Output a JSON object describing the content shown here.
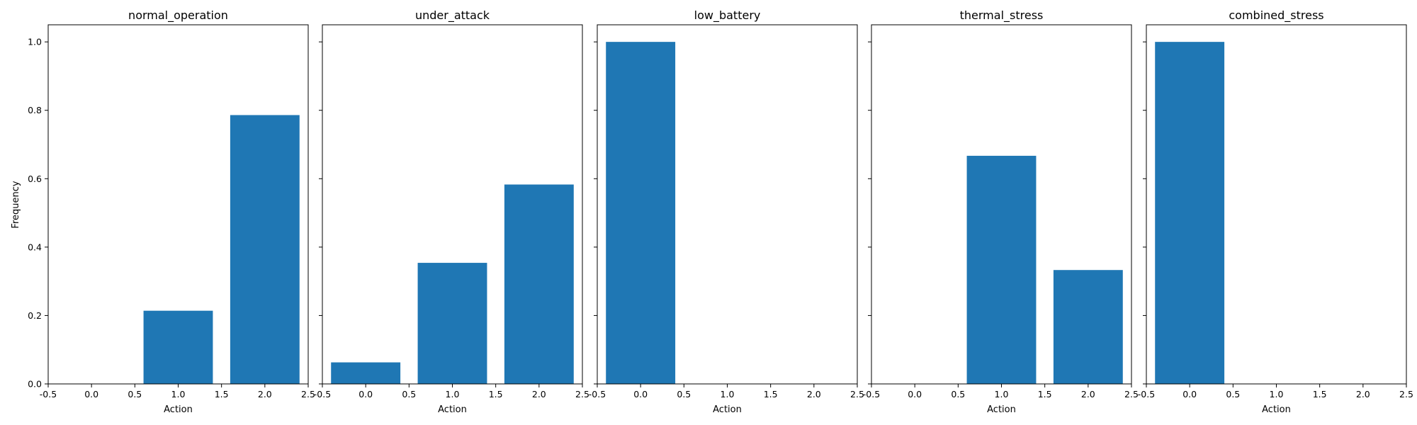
{
  "figure": {
    "ylabel": "Frequency",
    "bar_color": "#1f77b4"
  },
  "chart_data": [
    {
      "type": "bar",
      "title": "normal_operation",
      "xlabel": "Action",
      "ylabel": "Frequency",
      "x": [
        0,
        1,
        2
      ],
      "values": [
        0.0,
        0.214,
        0.786
      ],
      "bar_width": 0.8,
      "xlim": [
        -0.5,
        2.5
      ],
      "ylim": [
        0,
        1.05
      ],
      "xticks": [
        "-0.5",
        "0.0",
        "0.5",
        "1.0",
        "1.5",
        "2.0",
        "2.5"
      ],
      "yticks": [
        "0.0",
        "0.2",
        "0.4",
        "0.6",
        "0.8",
        "1.0"
      ],
      "grid": false
    },
    {
      "type": "bar",
      "title": "under_attack",
      "xlabel": "Action",
      "x": [
        0,
        1,
        2
      ],
      "values": [
        0.063,
        0.354,
        0.583
      ],
      "bar_width": 0.8,
      "xlim": [
        -0.5,
        2.5
      ],
      "ylim": [
        0,
        1.05
      ],
      "xticks": [
        "-0.5",
        "0.0",
        "0.5",
        "1.0",
        "1.5",
        "2.0",
        "2.5"
      ],
      "grid": false
    },
    {
      "type": "bar",
      "title": "low_battery",
      "xlabel": "Action",
      "x": [
        0,
        1,
        2
      ],
      "values": [
        1.0,
        0.0,
        0.0
      ],
      "bar_width": 0.8,
      "xlim": [
        -0.5,
        2.5
      ],
      "ylim": [
        0,
        1.05
      ],
      "xticks": [
        "-0.5",
        "0.0",
        "0.5",
        "1.0",
        "1.5",
        "2.0",
        "2.5"
      ],
      "grid": false
    },
    {
      "type": "bar",
      "title": "thermal_stress",
      "xlabel": "Action",
      "x": [
        0,
        1,
        2
      ],
      "values": [
        0.0,
        0.667,
        0.333
      ],
      "bar_width": 0.8,
      "xlim": [
        -0.5,
        2.5
      ],
      "ylim": [
        0,
        1.05
      ],
      "xticks": [
        "-0.5",
        "0.0",
        "0.5",
        "1.0",
        "1.5",
        "2.0",
        "2.5"
      ],
      "grid": false
    },
    {
      "type": "bar",
      "title": "combined_stress",
      "xlabel": "Action",
      "x": [
        0,
        1,
        2
      ],
      "values": [
        1.0,
        0.0,
        0.0
      ],
      "bar_width": 0.8,
      "xlim": [
        -0.5,
        2.5
      ],
      "ylim": [
        0,
        1.05
      ],
      "xticks": [
        "-0.5",
        "0.0",
        "0.5",
        "1.0",
        "1.5",
        "2.0",
        "2.5"
      ],
      "grid": false
    }
  ]
}
